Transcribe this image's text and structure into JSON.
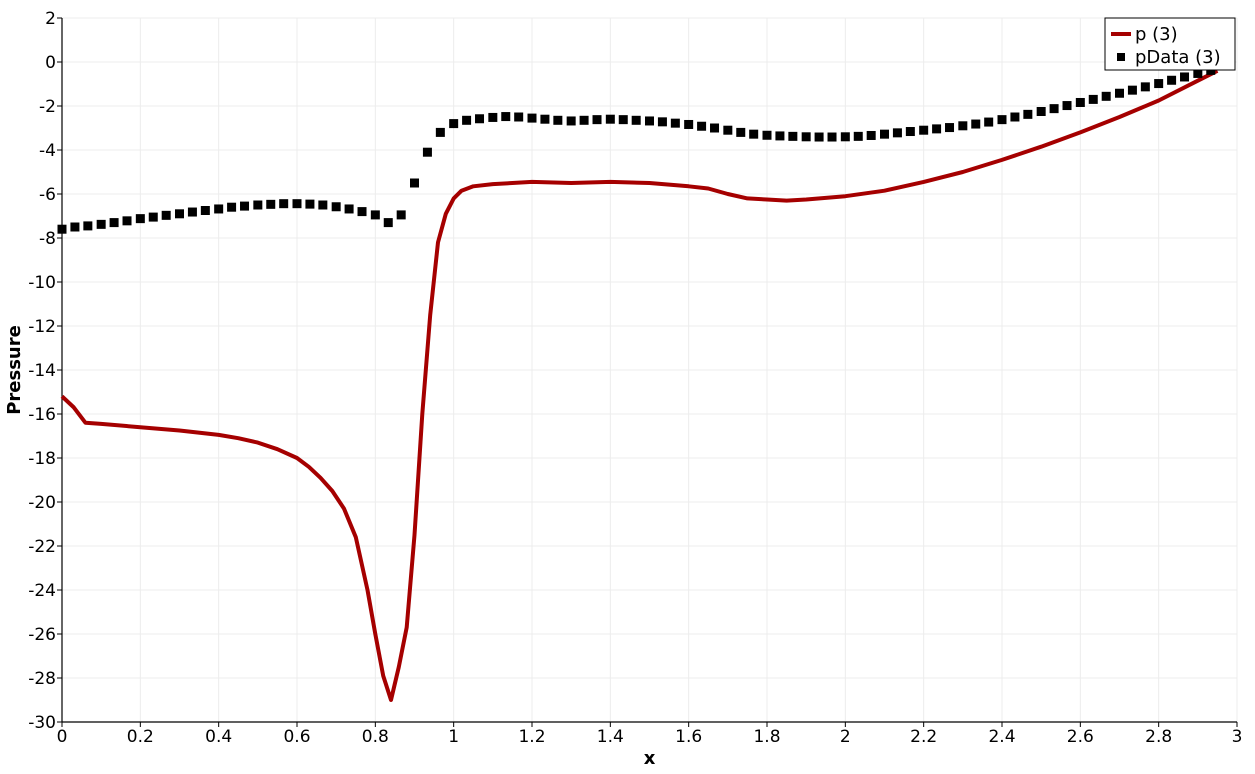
{
  "chart_data": {
    "type": "line",
    "xlabel": "x",
    "ylabel": "Pressure",
    "xlim": [
      0,
      3
    ],
    "ylim": [
      -30,
      2
    ],
    "x_ticks": [
      0,
      0.2,
      0.4,
      0.6,
      0.8,
      1,
      1.2,
      1.4,
      1.6,
      1.8,
      2,
      2.2,
      2.4,
      2.6,
      2.8,
      3
    ],
    "y_ticks": [
      2,
      0,
      -2,
      -4,
      -6,
      -8,
      -10,
      -12,
      -14,
      -16,
      -18,
      -20,
      -22,
      -24,
      -26,
      -28,
      -30
    ],
    "grid": true,
    "legend_position": "top-right",
    "series": [
      {
        "name": "p (3)",
        "style": "line",
        "color": "#a50000",
        "x": [
          0,
          0.03,
          0.06,
          0.1,
          0.2,
          0.3,
          0.4,
          0.45,
          0.5,
          0.55,
          0.6,
          0.63,
          0.66,
          0.69,
          0.72,
          0.75,
          0.78,
          0.8,
          0.82,
          0.84,
          0.86,
          0.88,
          0.9,
          0.92,
          0.94,
          0.96,
          0.98,
          1.0,
          1.02,
          1.05,
          1.1,
          1.2,
          1.3,
          1.4,
          1.5,
          1.6,
          1.65,
          1.7,
          1.75,
          1.8,
          1.85,
          1.9,
          2.0,
          2.1,
          2.2,
          2.3,
          2.4,
          2.5,
          2.6,
          2.7,
          2.8,
          2.9,
          2.95
        ],
        "y": [
          -15.2,
          -15.7,
          -16.4,
          -16.45,
          -16.6,
          -16.75,
          -16.95,
          -17.1,
          -17.3,
          -17.6,
          -18.0,
          -18.4,
          -18.9,
          -19.5,
          -20.3,
          -21.6,
          -24.0,
          -26.0,
          -27.9,
          -29.0,
          -27.5,
          -25.7,
          -21.5,
          -16.0,
          -11.5,
          -8.2,
          -6.9,
          -6.2,
          -5.85,
          -5.65,
          -5.55,
          -5.45,
          -5.5,
          -5.45,
          -5.5,
          -5.65,
          -5.75,
          -6.0,
          -6.2,
          -6.25,
          -6.3,
          -6.25,
          -6.1,
          -5.85,
          -5.45,
          -5.0,
          -4.45,
          -3.85,
          -3.2,
          -2.5,
          -1.75,
          -0.85,
          -0.4
        ]
      },
      {
        "name": "pData (3)",
        "style": "markers",
        "color": "#000000",
        "x": [
          0,
          0.033,
          0.066,
          0.1,
          0.133,
          0.166,
          0.2,
          0.233,
          0.266,
          0.3,
          0.333,
          0.366,
          0.4,
          0.433,
          0.466,
          0.5,
          0.533,
          0.566,
          0.6,
          0.633,
          0.666,
          0.7,
          0.733,
          0.766,
          0.8,
          0.833,
          0.866,
          0.9,
          0.933,
          0.966,
          1.0,
          1.033,
          1.066,
          1.1,
          1.133,
          1.166,
          1.2,
          1.233,
          1.266,
          1.3,
          1.333,
          1.366,
          1.4,
          1.433,
          1.466,
          1.5,
          1.533,
          1.566,
          1.6,
          1.633,
          1.666,
          1.7,
          1.733,
          1.766,
          1.8,
          1.833,
          1.866,
          1.9,
          1.933,
          1.966,
          2.0,
          2.033,
          2.066,
          2.1,
          2.133,
          2.166,
          2.2,
          2.233,
          2.266,
          2.3,
          2.333,
          2.366,
          2.4,
          2.433,
          2.466,
          2.5,
          2.533,
          2.566,
          2.6,
          2.633,
          2.666,
          2.7,
          2.733,
          2.766,
          2.8,
          2.833,
          2.866,
          2.9,
          2.933
        ],
        "y": [
          -7.6,
          -7.5,
          -7.45,
          -7.38,
          -7.3,
          -7.22,
          -7.12,
          -7.05,
          -6.97,
          -6.9,
          -6.82,
          -6.75,
          -6.68,
          -6.6,
          -6.55,
          -6.5,
          -6.47,
          -6.44,
          -6.44,
          -6.46,
          -6.5,
          -6.58,
          -6.68,
          -6.8,
          -6.95,
          -7.3,
          -6.95,
          -5.5,
          -4.1,
          -3.2,
          -2.8,
          -2.65,
          -2.58,
          -2.52,
          -2.48,
          -2.5,
          -2.55,
          -2.6,
          -2.65,
          -2.68,
          -2.65,
          -2.62,
          -2.6,
          -2.62,
          -2.65,
          -2.68,
          -2.72,
          -2.78,
          -2.84,
          -2.92,
          -3.0,
          -3.1,
          -3.2,
          -3.28,
          -3.33,
          -3.36,
          -3.38,
          -3.4,
          -3.41,
          -3.41,
          -3.4,
          -3.38,
          -3.34,
          -3.28,
          -3.22,
          -3.16,
          -3.1,
          -3.04,
          -2.98,
          -2.9,
          -2.82,
          -2.73,
          -2.62,
          -2.5,
          -2.38,
          -2.25,
          -2.12,
          -1.98,
          -1.84,
          -1.7,
          -1.56,
          -1.42,
          -1.28,
          -1.13,
          -0.98,
          -0.83,
          -0.68,
          -0.52,
          -0.38
        ]
      }
    ]
  }
}
